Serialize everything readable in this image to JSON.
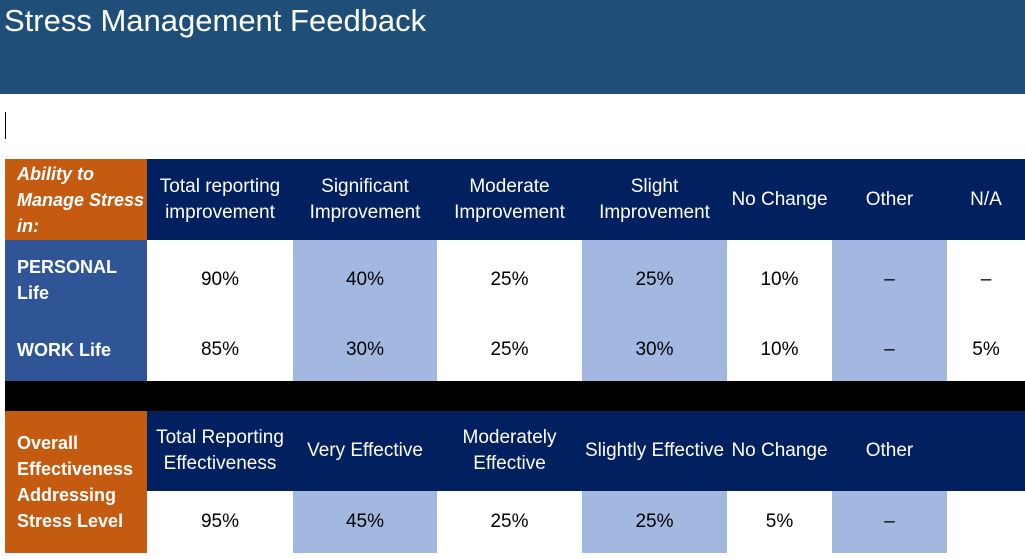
{
  "title": "Stress Management Feedback",
  "table1": {
    "corner_label": "Ability to Manage Stress in:",
    "headers": [
      "Total reporting improvement",
      "Significant Improvement",
      "Moderate Improvement",
      "Slight Improvement",
      "No Change",
      "Other",
      "N/A"
    ],
    "rows": [
      {
        "label": "PERSONAL Life",
        "values": [
          "90%",
          "40%",
          "25%",
          "25%",
          "10%",
          "–",
          "–"
        ]
      },
      {
        "label": "WORK Life",
        "values": [
          "85%",
          "30%",
          "25%",
          "30%",
          "10%",
          "–",
          "5%"
        ]
      }
    ]
  },
  "table2": {
    "corner_label": "Overall Effectiveness Addressing Stress Level",
    "headers": [
      "Total Reporting Effectiveness",
      "Very Effective",
      "Moderately Effective",
      "Slightly Effective",
      "No Change",
      "Other"
    ],
    "rows": [
      {
        "values": [
          "95%",
          "45%",
          "25%",
          "25%",
          "5%",
          "–"
        ]
      }
    ]
  },
  "colors": {
    "title_bg": "#1f4e79",
    "header_bg": "#002060",
    "corner_bg": "#c55a11",
    "row_label_bg": "#2f5597",
    "shaded_cell": "#a2b8e1"
  }
}
